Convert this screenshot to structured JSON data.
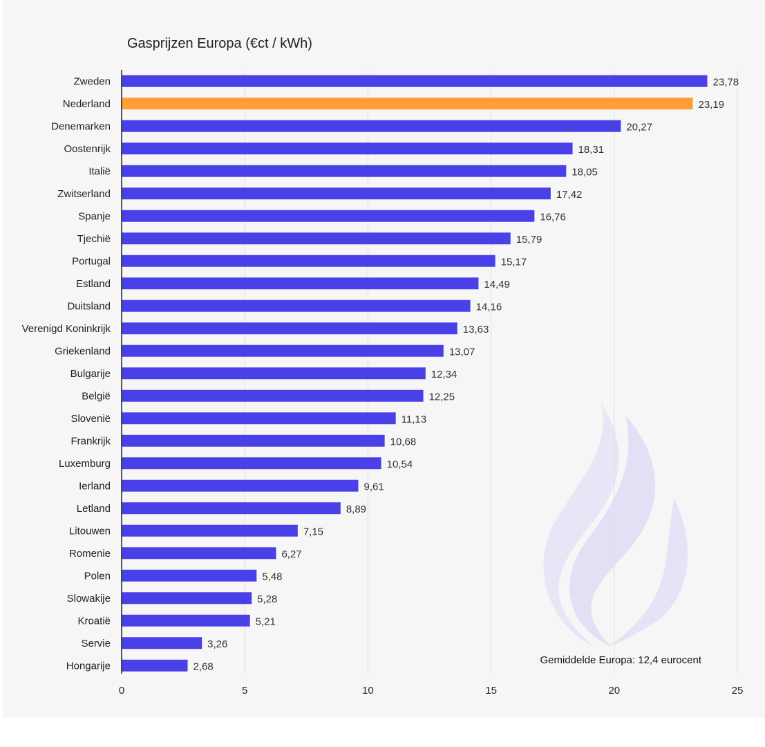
{
  "chart_data": {
    "type": "bar",
    "orientation": "horizontal",
    "title": "Gasprijzen Europa (€ct / kWh)",
    "xlabel": "",
    "ylabel": "",
    "xlim": [
      0,
      25
    ],
    "x_ticks": [
      "0",
      "5",
      "10",
      "15",
      "20",
      "25"
    ],
    "grid": true,
    "categories": [
      "Zweden",
      "Nederland",
      "Denemarken",
      "Oostenrijk",
      "Italië",
      "Zwitserland",
      "Spanje",
      "Tjechië",
      "Portugal",
      "Estland",
      "Duitsland",
      "Verenigd Koninkrijk",
      "Griekenland",
      "Bulgarije",
      "België",
      "Slovenië",
      "Frankrijk",
      "Luxemburg",
      "Ierland",
      "Letland",
      "Litouwen",
      "Romenie",
      "Polen",
      "Slowakije",
      "Kroatië",
      "Servie",
      "Hongarije"
    ],
    "values": [
      23.78,
      23.19,
      20.27,
      18.31,
      18.05,
      17.42,
      16.76,
      15.79,
      15.17,
      14.49,
      14.16,
      13.63,
      13.07,
      12.34,
      12.25,
      11.13,
      10.68,
      10.54,
      9.61,
      8.89,
      7.15,
      6.27,
      5.48,
      5.28,
      5.21,
      3.26,
      2.68
    ],
    "value_labels": [
      "23,78",
      "23,19",
      "20,27",
      "18,31",
      "18,05",
      "17,42",
      "16,76",
      "15,79",
      "15,17",
      "14,49",
      "14,16",
      "13,63",
      "13,07",
      "12,34",
      "12,25",
      "11,13",
      "10,68",
      "10,54",
      "9,61",
      "8,89",
      "7,15",
      "6,27",
      "5,48",
      "5,28",
      "5,21",
      "3,26",
      "2,68"
    ],
    "highlight_category": "Nederland",
    "annotation": "Gemiddelde Europa: 12,4 eurocent"
  },
  "colors": {
    "bar": "#4a40e8",
    "highlight": "#ff9f36",
    "grid": "#dedede",
    "axis": "#222222"
  },
  "watermark": {
    "icon": "flame-icon"
  }
}
